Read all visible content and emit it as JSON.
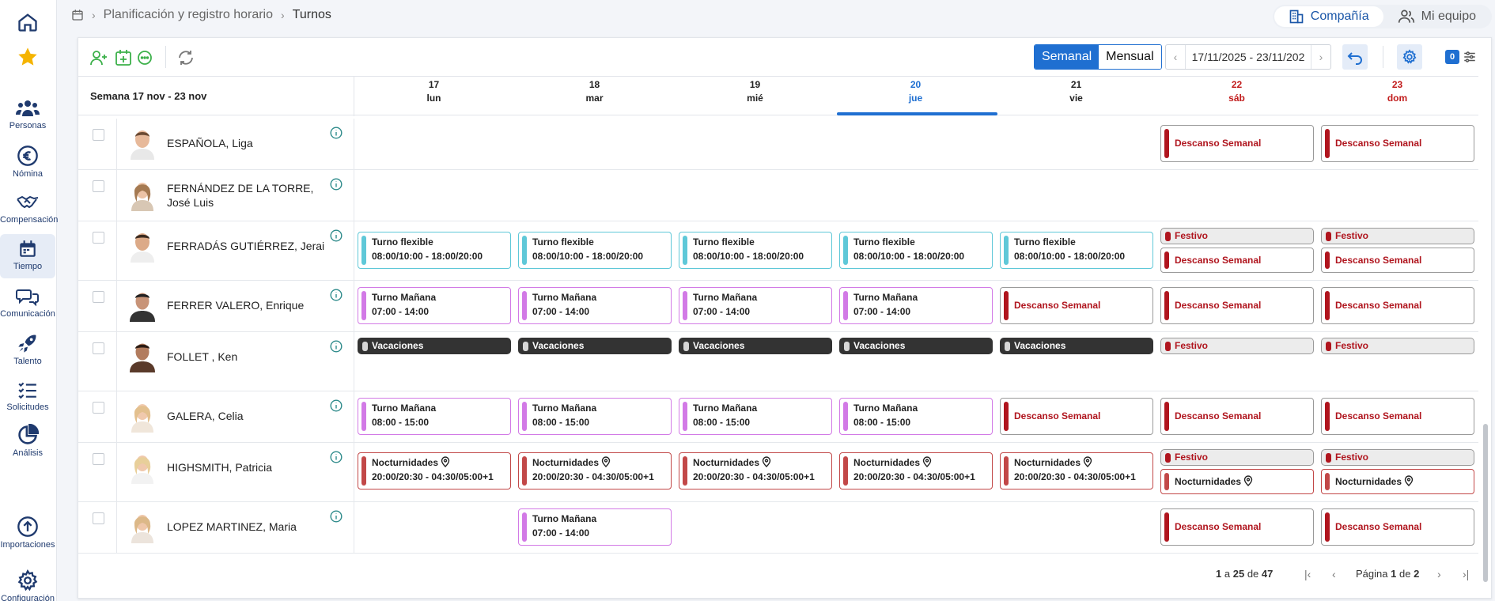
{
  "nav": [
    {
      "id": "home",
      "label": ""
    },
    {
      "id": "favorites",
      "label": ""
    },
    {
      "id": "personas",
      "label": "Personas"
    },
    {
      "id": "nomina",
      "label": "Nómina"
    },
    {
      "id": "compensacion",
      "label": "Compensación"
    },
    {
      "id": "tiempo",
      "label": "Tiempo"
    },
    {
      "id": "comunicacion",
      "label": "Comunicación"
    },
    {
      "id": "talento",
      "label": "Talento"
    },
    {
      "id": "solicitudes",
      "label": "Solicitudes"
    },
    {
      "id": "analisis",
      "label": "Análisis"
    },
    {
      "id": "importaciones",
      "label": "Importaciones"
    },
    {
      "id": "configuracion",
      "label": "Configuración"
    }
  ],
  "breadcrumb": {
    "parent": "Planificación y registro horario",
    "current": "Turnos"
  },
  "switch": {
    "company": "Compañía",
    "team": "Mi equipo"
  },
  "toolbar": {
    "weekly": "Semanal",
    "monthly": "Mensual",
    "date_range": "17/11/2025 - 23/11/202",
    "count": "0"
  },
  "grid": {
    "week_label": "Semana 17 nov - 23 nov",
    "days": [
      {
        "num": "17",
        "name": "lun",
        "type": "normal"
      },
      {
        "num": "18",
        "name": "mar",
        "type": "normal"
      },
      {
        "num": "19",
        "name": "mié",
        "type": "normal"
      },
      {
        "num": "20",
        "name": "jue",
        "type": "today"
      },
      {
        "num": "21",
        "name": "vie",
        "type": "normal"
      },
      {
        "num": "22",
        "name": "sáb",
        "type": "weekend"
      },
      {
        "num": "23",
        "name": "dom",
        "type": "weekend"
      }
    ]
  },
  "labels": {
    "descanso": "Descanso Semanal",
    "festivo": "Festivo",
    "vacaciones": "Vacaciones",
    "flexible": "Turno flexible",
    "manana": "Turno Mañana",
    "noct": "Nocturnidades"
  },
  "times": {
    "flexible": "08:00/10:00 - 18:00/20:00",
    "manana_a": "07:00 - 14:00",
    "manana_b": "08:00 - 15:00",
    "noct": "20:00/20:30 - 04:30/05:00+1"
  },
  "people": [
    {
      "name": "ESPAÑOLA, Liga"
    },
    {
      "name": "FERNÁNDEZ DE LA TORRE, José Luis"
    },
    {
      "name": "FERRADÁS GUTIÉRREZ, Jerai"
    },
    {
      "name": "FERRER VALERO, Enrique"
    },
    {
      "name": "FOLLET , Ken"
    },
    {
      "name": "GALERA, Celia"
    },
    {
      "name": "HIGHSMITH, Patricia"
    },
    {
      "name": "LOPEZ MARTINEZ, Maria"
    }
  ],
  "pager": {
    "from": "1",
    "to": "25",
    "total": "47",
    "page": "1",
    "pages": "2",
    "a": "a",
    "de": "de",
    "pagina": "Página"
  },
  "colors": {
    "accent": "#1f6fd1",
    "flex": "#5fc8d8",
    "manana": "#d27ae6",
    "red": "#b0151e",
    "noct": "#c24848"
  }
}
